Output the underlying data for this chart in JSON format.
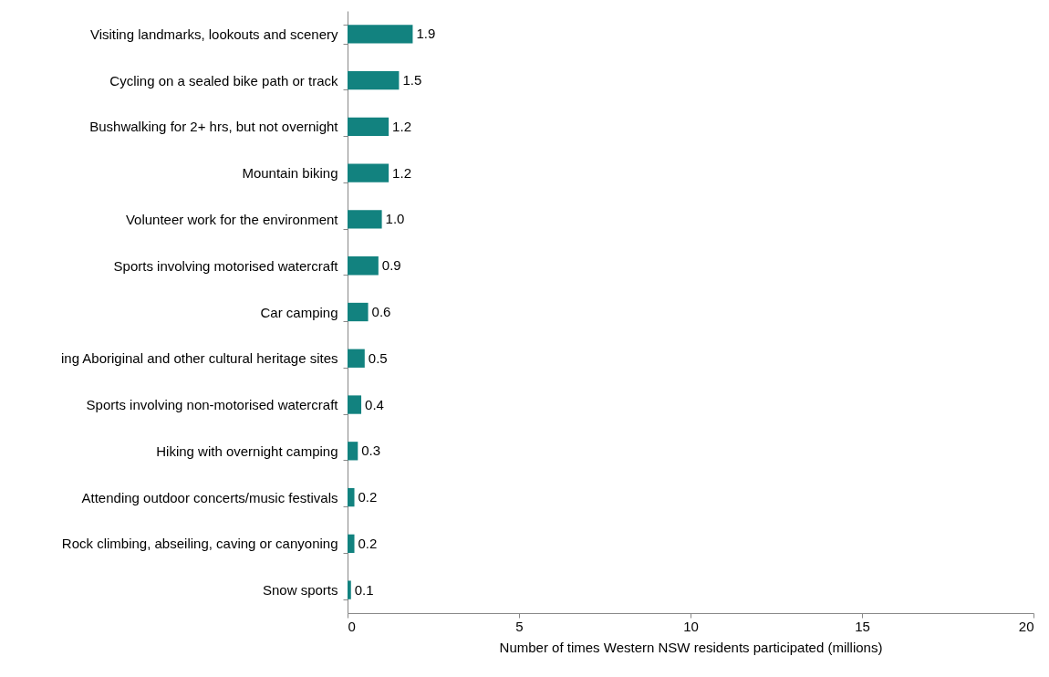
{
  "chart_data": {
    "type": "bar",
    "orientation": "horizontal",
    "xlabel": "Number of times Western NSW residents participated (millions)",
    "categories": [
      "Visiting landmarks, lookouts and scenery",
      "Cycling on a sealed bike path or track",
      "Bushwalking for 2+ hrs, but not overnight",
      "Mountain biking",
      "Volunteer work for the environment",
      "Sports involving motorised watercraft",
      "Car camping",
      "ing Aboriginal and other cultural heritage sites",
      "Sports involving non-motorised watercraft",
      "Hiking with overnight camping",
      "Attending outdoor concerts/music festivals",
      "Rock climbing, abseiling, caving or canyoning",
      "Snow sports"
    ],
    "values": [
      1.9,
      1.5,
      1.2,
      1.2,
      1.0,
      0.9,
      0.6,
      0.5,
      0.4,
      0.3,
      0.2,
      0.2,
      0.1
    ],
    "value_labels": [
      "1.9",
      "1.5",
      "1.2",
      "1.2",
      "1.0",
      "0.9",
      "0.6",
      "0.5",
      "0.4",
      "0.3",
      "0.2",
      "0.2",
      "0.1"
    ],
    "color": "#12827f",
    "xlim": [
      0,
      20
    ],
    "xticks": [
      0,
      5,
      10,
      15,
      20
    ],
    "grid": false
  }
}
